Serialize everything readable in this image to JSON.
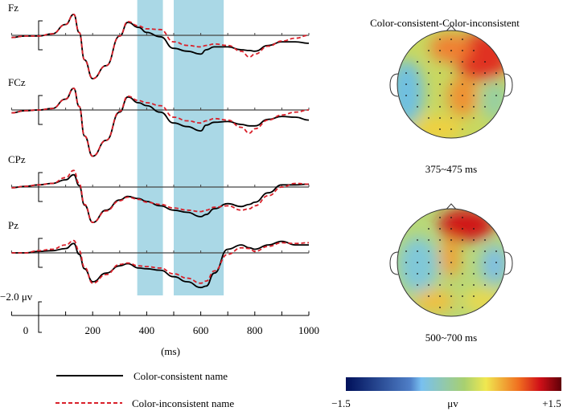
{
  "chart_data": {
    "type": "line",
    "xlabel": "(ms)",
    "x_ticks": [
      "0",
      "200",
      "400",
      "600",
      "800",
      "1000"
    ],
    "xlim": [
      -100,
      1000
    ],
    "scale_label": "−2.0 μv",
    "scale_uv": 2.0,
    "highlight_windows_ms": [
      [
        365,
        460
      ],
      [
        500,
        685
      ]
    ],
    "x": [
      -100,
      -50,
      0,
      50,
      100,
      130,
      150,
      170,
      200,
      250,
      300,
      330,
      370,
      400,
      450,
      500,
      550,
      600,
      620,
      650,
      700,
      750,
      780,
      800,
      850,
      900,
      950,
      1000
    ],
    "legend": [
      "Color-consistent name",
      "Color-inconsistent name"
    ],
    "colors": {
      "consistent": "#000000",
      "inconsistent": "#d9202a",
      "band": "#aad8e6"
    },
    "channels": [
      {
        "name": "Fz",
        "series": [
          {
            "name": "Color-consistent name",
            "values": [
              0.3,
              0.1,
              0.1,
              -0.2,
              -1.5,
              -2.9,
              -0.4,
              3.4,
              6.0,
              4.2,
              0.1,
              -1.8,
              -1.1,
              -0.4,
              0.2,
              1.8,
              2.2,
              2.6,
              2.0,
              1.6,
              1.6,
              2.0,
              2.1,
              2.2,
              1.4,
              0.9,
              0.9,
              1.1
            ]
          },
          {
            "name": "Color-inconsistent name",
            "values": [
              0.3,
              0.1,
              0.1,
              -0.2,
              -1.5,
              -2.9,
              -0.4,
              3.4,
              6.0,
              4.2,
              0.1,
              -1.9,
              -1.3,
              -0.9,
              -0.8,
              0.9,
              1.4,
              1.6,
              1.4,
              1.2,
              1.4,
              2.2,
              3.0,
              2.6,
              1.5,
              0.8,
              0.4,
              0.0
            ]
          }
        ]
      },
      {
        "name": "FCz",
        "series": [
          {
            "name": "Color-consistent name",
            "values": [
              0.4,
              0.1,
              0.0,
              -0.2,
              -1.5,
              -3.0,
              -0.5,
              3.6,
              6.4,
              4.2,
              0.3,
              -1.8,
              -1.0,
              -0.6,
              0.3,
              1.8,
              2.3,
              2.9,
              2.1,
              1.7,
              1.6,
              2.0,
              2.2,
              2.2,
              1.3,
              0.9,
              1.0,
              1.4
            ]
          },
          {
            "name": "Color-inconsistent name",
            "values": [
              0.4,
              0.1,
              0.0,
              -0.2,
              -1.5,
              -3.0,
              -0.5,
              3.6,
              6.4,
              4.2,
              0.2,
              -1.9,
              -1.3,
              -1.0,
              -0.6,
              1.0,
              1.5,
              1.8,
              1.5,
              1.2,
              1.4,
              2.4,
              3.2,
              2.6,
              1.4,
              0.7,
              0.3,
              0.0
            ]
          }
        ]
      },
      {
        "name": "CPz",
        "series": [
          {
            "name": "Color-consistent name",
            "values": [
              0.1,
              -0.1,
              -0.3,
              -0.5,
              -1.0,
              -1.7,
              -0.2,
              2.5,
              4.9,
              3.2,
              1.8,
              1.3,
              1.6,
              2.0,
              2.6,
              3.2,
              3.5,
              4.1,
              3.8,
              3.0,
              2.3,
              2.7,
              2.4,
              2.1,
              0.8,
              -0.3,
              -0.3,
              -0.4
            ]
          },
          {
            "name": "Color-inconsistent name",
            "values": [
              0.1,
              -0.1,
              -0.3,
              -0.5,
              -1.3,
              -2.3,
              -0.5,
              2.4,
              4.9,
              3.3,
              1.9,
              1.4,
              1.7,
              2.1,
              2.4,
              2.9,
              3.2,
              3.4,
              3.2,
              2.8,
              2.6,
              3.2,
              3.0,
              2.6,
              1.2,
              0.0,
              -0.5,
              -0.4
            ]
          }
        ]
      },
      {
        "name": "Pz",
        "series": [
          {
            "name": "Color-consistent name",
            "values": [
              0.0,
              0.0,
              -0.2,
              -0.3,
              -0.6,
              -1.3,
              0.2,
              2.2,
              4.0,
              2.8,
              1.8,
              1.5,
              2.1,
              2.2,
              2.4,
              3.3,
              4.0,
              4.8,
              4.6,
              2.8,
              -0.5,
              -1.1,
              -0.7,
              -0.5,
              -1.1,
              -1.6,
              -1.1,
              -1.1
            ]
          },
          {
            "name": "Color-inconsistent name",
            "values": [
              0.0,
              0.0,
              -0.3,
              -0.5,
              -1.1,
              -1.7,
              -0.3,
              2.0,
              4.2,
              3.0,
              1.6,
              1.4,
              1.8,
              1.9,
              2.1,
              2.9,
              3.5,
              4.2,
              3.9,
              2.5,
              0.2,
              -0.7,
              -0.6,
              -0.2,
              -0.9,
              -1.4,
              -1.3,
              -1.4
            ]
          }
        ]
      }
    ]
  },
  "topomap": {
    "title": "Color-consistent-Color-inconsistent",
    "maps": [
      {
        "label": "375~475 ms"
      },
      {
        "label": "500~700 ms"
      }
    ],
    "colorbar": {
      "min_label": "−1.5",
      "max_label": "+1.5",
      "unit": "μv",
      "min": -1.5,
      "max": 1.5
    }
  }
}
